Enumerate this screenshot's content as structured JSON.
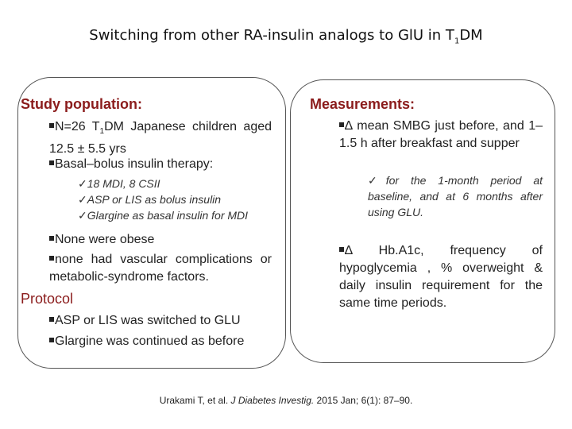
{
  "title": {
    "before": "Switching from other RA-insulin analogs to GlU  in T",
    "sub": "1",
    "after": "DM"
  },
  "left_panel": {
    "heading": "Study population:",
    "bullets": [
      {
        "before": "N=26  T",
        "sub": "1",
        "after": "DM  Japanese  children aged 12.5 ± 5.5 yrs"
      },
      "Basal–bolus insulin therapy:"
    ],
    "checks": [
      "18 MDI, 8 CSII",
      "ASP or LIS as bolus insulin",
      "Glargine as basal insulin for MDI"
    ],
    "bullets_2": [
      "None were obese",
      "none  had  vascular  complications or metabolic-syndrome factors."
    ],
    "protocol_heading": "Protocol",
    "protocol_bullets": [
      "ASP or LIS was switched to GLU",
      "Glargine was continued as before"
    ]
  },
  "right_panel": {
    "heading": "Measurements:",
    "bullet_1": "∆ mean SMBG just before, and 1–1.5  h  after  breakfast  and supper",
    "check": "for  the  1-month  period  at baseline, and at 6 months after using GLU.",
    "bullet_2": "∆     Hb.A1c,     frequency     of hypoglycemia , % overweight & daily insulin requirement for the same time periods."
  },
  "citation": {
    "before": "Urakami T, et al. ",
    "journal": "J Diabetes Investig.",
    "after": " 2015 Jan; 6(1): 87–90."
  }
}
